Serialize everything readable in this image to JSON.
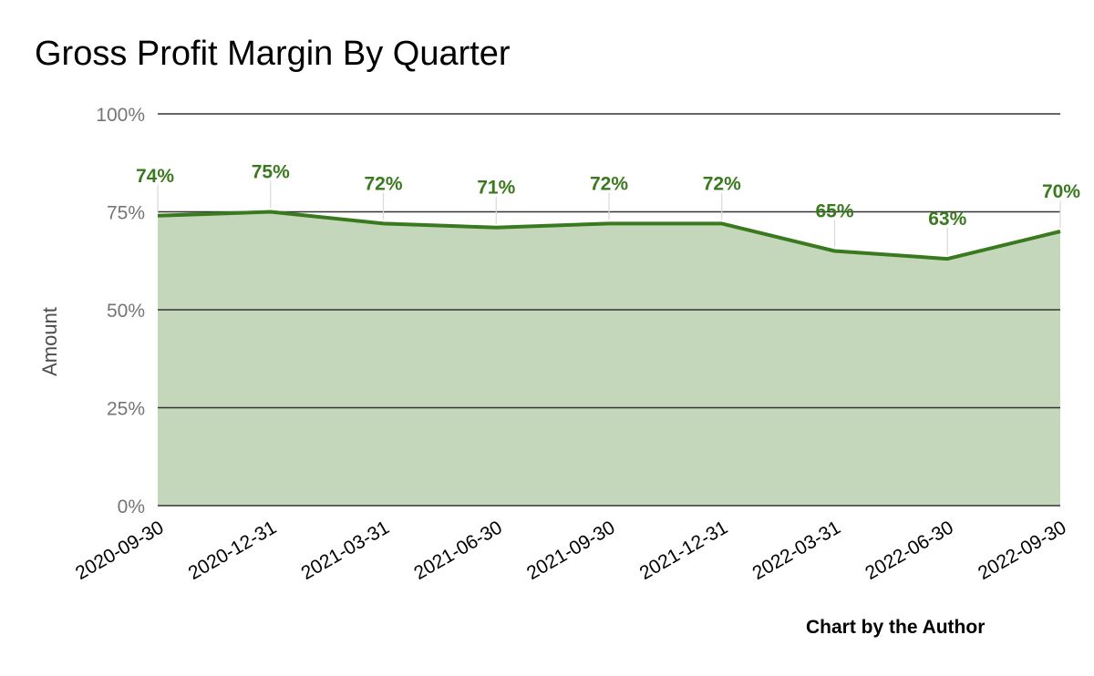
{
  "chart_data": {
    "type": "area",
    "title": "Gross Profit Margin By Quarter",
    "xlabel": "",
    "ylabel": "Amount",
    "categories": [
      "2020-09-30",
      "2020-12-31",
      "2021-03-31",
      "2021-06-30",
      "2021-09-30",
      "2021-12-31",
      "2022-03-31",
      "2022-06-30",
      "2022-09-30"
    ],
    "values": [
      74,
      75,
      72,
      71,
      72,
      72,
      65,
      63,
      70
    ],
    "data_labels": [
      "74%",
      "75%",
      "72%",
      "71%",
      "72%",
      "72%",
      "65%",
      "63%",
      "70%"
    ],
    "ylim": [
      0,
      100
    ],
    "yticks": [
      0,
      25,
      50,
      75,
      100
    ],
    "ytick_labels": [
      "0%",
      "25%",
      "50%",
      "75%",
      "100%"
    ],
    "grid": true,
    "legend": "none",
    "colors": {
      "line": "#3a7a1e",
      "fill": "#c4d7bb",
      "label": "#3a7a1e",
      "grid": "#333333"
    }
  },
  "credit": "Chart by the Author"
}
